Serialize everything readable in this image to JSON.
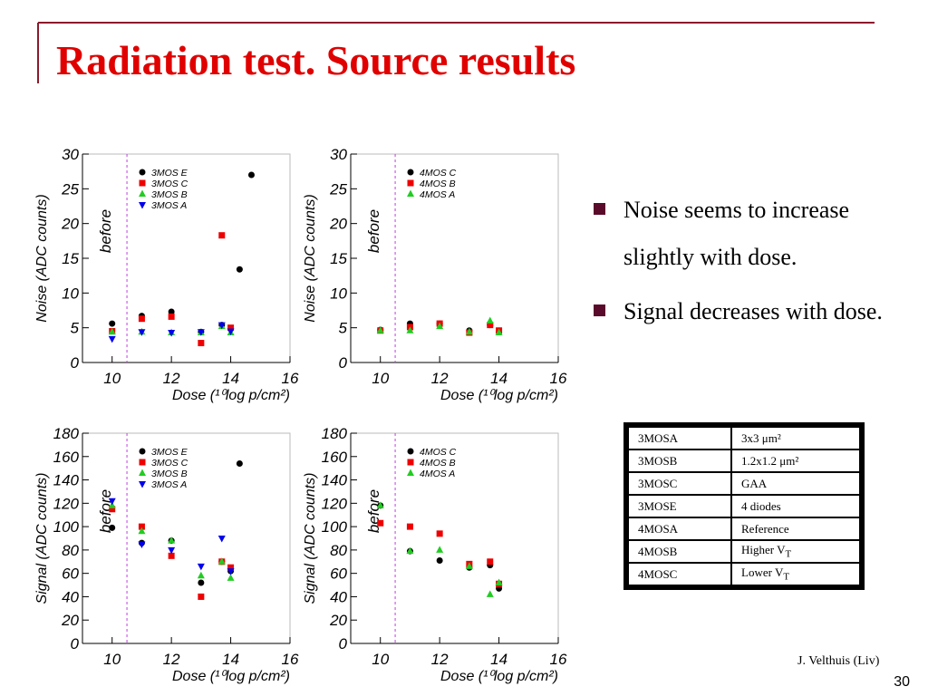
{
  "title": "Radiation test. Source results",
  "bullets": [
    "Noise seems to increase slightly with dose.",
    "Signal decreases with dose."
  ],
  "table": {
    "rows": [
      [
        "3MOSA",
        {
          "text": "3x3 μm²"
        }
      ],
      [
        "3MOSB",
        {
          "text": "1.2x1.2 μm²"
        }
      ],
      [
        "3MOSC",
        {
          "text": "GAA"
        }
      ],
      [
        "3MOSE",
        {
          "text": "4 diodes"
        }
      ],
      [
        "4MOSA",
        {
          "text": "Reference"
        }
      ],
      [
        "4MOSB",
        {
          "text": "Higher V",
          "sub": "T"
        }
      ],
      [
        "4MOSC",
        {
          "text": "Lower V",
          "sub": "T"
        }
      ]
    ]
  },
  "footer": {
    "author": "J. Velthuis (Liv)",
    "page": "30"
  },
  "chart_data": [
    {
      "type": "scatter",
      "xlabel": "Dose (¹⁰log p/cm²)",
      "ylabel": "Noise (ADC counts)",
      "annotation": "before",
      "vline": 10.5,
      "xlim": [
        9,
        16
      ],
      "xticks": [
        10,
        12,
        14,
        16
      ],
      "ylim": [
        0,
        30
      ],
      "yticks": [
        0,
        5,
        10,
        15,
        20,
        25,
        30
      ],
      "legend": "upper left",
      "series": [
        {
          "name": "3MOS E",
          "color": "#000000",
          "marker": "circle",
          "x": [
            10,
            11,
            12,
            13,
            13.7,
            14.3,
            14.7
          ],
          "values": [
            5.6,
            6.7,
            7.3,
            4.4,
            5.4,
            13.4,
            27
          ]
        },
        {
          "name": "3MOS C",
          "color": "#ee0000",
          "marker": "square",
          "x": [
            10,
            11,
            12,
            13,
            13.7,
            14
          ],
          "values": [
            4.5,
            6.3,
            6.6,
            2.8,
            18.3,
            5
          ]
        },
        {
          "name": "3MOS B",
          "color": "#22cc22",
          "marker": "triangle",
          "x": [
            10,
            11,
            12,
            13,
            13.7,
            14
          ],
          "values": [
            4.4,
            4.4,
            4.3,
            4.3,
            5.2,
            4.3
          ]
        },
        {
          "name": "3MOS A",
          "color": "#0000ee",
          "marker": "triangle-down",
          "x": [
            10,
            11,
            12,
            13,
            13.7,
            14
          ],
          "values": [
            3.4,
            4.4,
            4.3,
            4.4,
            5.4,
            4.5
          ]
        }
      ]
    },
    {
      "type": "scatter",
      "xlabel": "Dose (¹⁰log p/cm²)",
      "ylabel": "Noise (ADC counts)",
      "annotation": "before",
      "vline": 10.5,
      "xlim": [
        9,
        16
      ],
      "xticks": [
        10,
        12,
        14,
        16
      ],
      "ylim": [
        0,
        30
      ],
      "yticks": [
        0,
        5,
        10,
        15,
        20,
        25,
        30
      ],
      "legend": "upper left",
      "series": [
        {
          "name": "4MOS C",
          "color": "#000000",
          "marker": "circle",
          "x": [
            10,
            11,
            12,
            13,
            13.7,
            14
          ],
          "values": [
            4.7,
            5.6,
            5.6,
            4.6,
            5.4,
            4.4
          ]
        },
        {
          "name": "4MOS B",
          "color": "#ee0000",
          "marker": "square",
          "x": [
            10,
            11,
            12,
            13,
            13.7,
            14
          ],
          "values": [
            4.6,
            5.1,
            5.6,
            4.3,
            5.4,
            4.6
          ]
        },
        {
          "name": "4MOS A",
          "color": "#22cc22",
          "marker": "triangle",
          "x": [
            10,
            11,
            12,
            13,
            13.7,
            14
          ],
          "values": [
            4.6,
            4.6,
            5.2,
            4.4,
            6,
            4.3
          ]
        }
      ]
    },
    {
      "type": "scatter",
      "xlabel": "Dose (¹⁰log p/cm²)",
      "ylabel": "Signal (ADC counts)",
      "annotation": "before",
      "vline": 10.5,
      "xlim": [
        9,
        16
      ],
      "xticks": [
        10,
        12,
        14,
        16
      ],
      "ylim": [
        0,
        180
      ],
      "yticks": [
        0,
        20,
        40,
        60,
        80,
        100,
        120,
        140,
        160,
        180
      ],
      "legend": "upper left",
      "series": [
        {
          "name": "3MOS E",
          "color": "#000000",
          "marker": "circle",
          "x": [
            10,
            11,
            12,
            13,
            13.7,
            14,
            14.3
          ],
          "values": [
            99,
            86,
            88,
            52,
            70,
            62,
            154
          ]
        },
        {
          "name": "3MOS C",
          "color": "#ee0000",
          "marker": "square",
          "x": [
            10,
            11,
            12,
            13,
            13.7,
            14
          ],
          "values": [
            115,
            100,
            75,
            40,
            70,
            65
          ]
        },
        {
          "name": "3MOS B",
          "color": "#22cc22",
          "marker": "triangle",
          "x": [
            10,
            11,
            12,
            13,
            13.7,
            14
          ],
          "values": [
            118,
            96,
            88,
            58,
            70,
            56
          ]
        },
        {
          "name": "3MOS A",
          "color": "#0000ee",
          "marker": "triangle-down",
          "x": [
            10,
            11,
            12,
            13,
            13.7,
            14
          ],
          "values": [
            122,
            85,
            80,
            66,
            90,
            62
          ]
        }
      ]
    },
    {
      "type": "scatter",
      "xlabel": "Dose (¹⁰log p/cm²)",
      "ylabel": "Signal (ADC counts)",
      "annotation": "before",
      "vline": 10.5,
      "xlim": [
        9,
        16
      ],
      "xticks": [
        10,
        12,
        14,
        16
      ],
      "ylim": [
        0,
        180
      ],
      "yticks": [
        0,
        20,
        40,
        60,
        80,
        100,
        120,
        140,
        160,
        180
      ],
      "legend": "upper left",
      "series": [
        {
          "name": "4MOS C",
          "color": "#000000",
          "marker": "circle",
          "x": [
            10,
            11,
            12,
            13,
            13.7,
            14
          ],
          "values": [
            118,
            79,
            71,
            65,
            67,
            47
          ]
        },
        {
          "name": "4MOS B",
          "color": "#ee0000",
          "marker": "square",
          "x": [
            10,
            11,
            12,
            13,
            13.7,
            14
          ],
          "values": [
            103,
            100,
            94,
            68,
            70,
            51
          ]
        },
        {
          "name": "4MOS A",
          "color": "#22cc22",
          "marker": "triangle",
          "x": [
            10,
            11,
            12,
            13,
            13.7,
            14
          ],
          "values": [
            118,
            79,
            80,
            66,
            42,
            52
          ]
        }
      ]
    }
  ]
}
